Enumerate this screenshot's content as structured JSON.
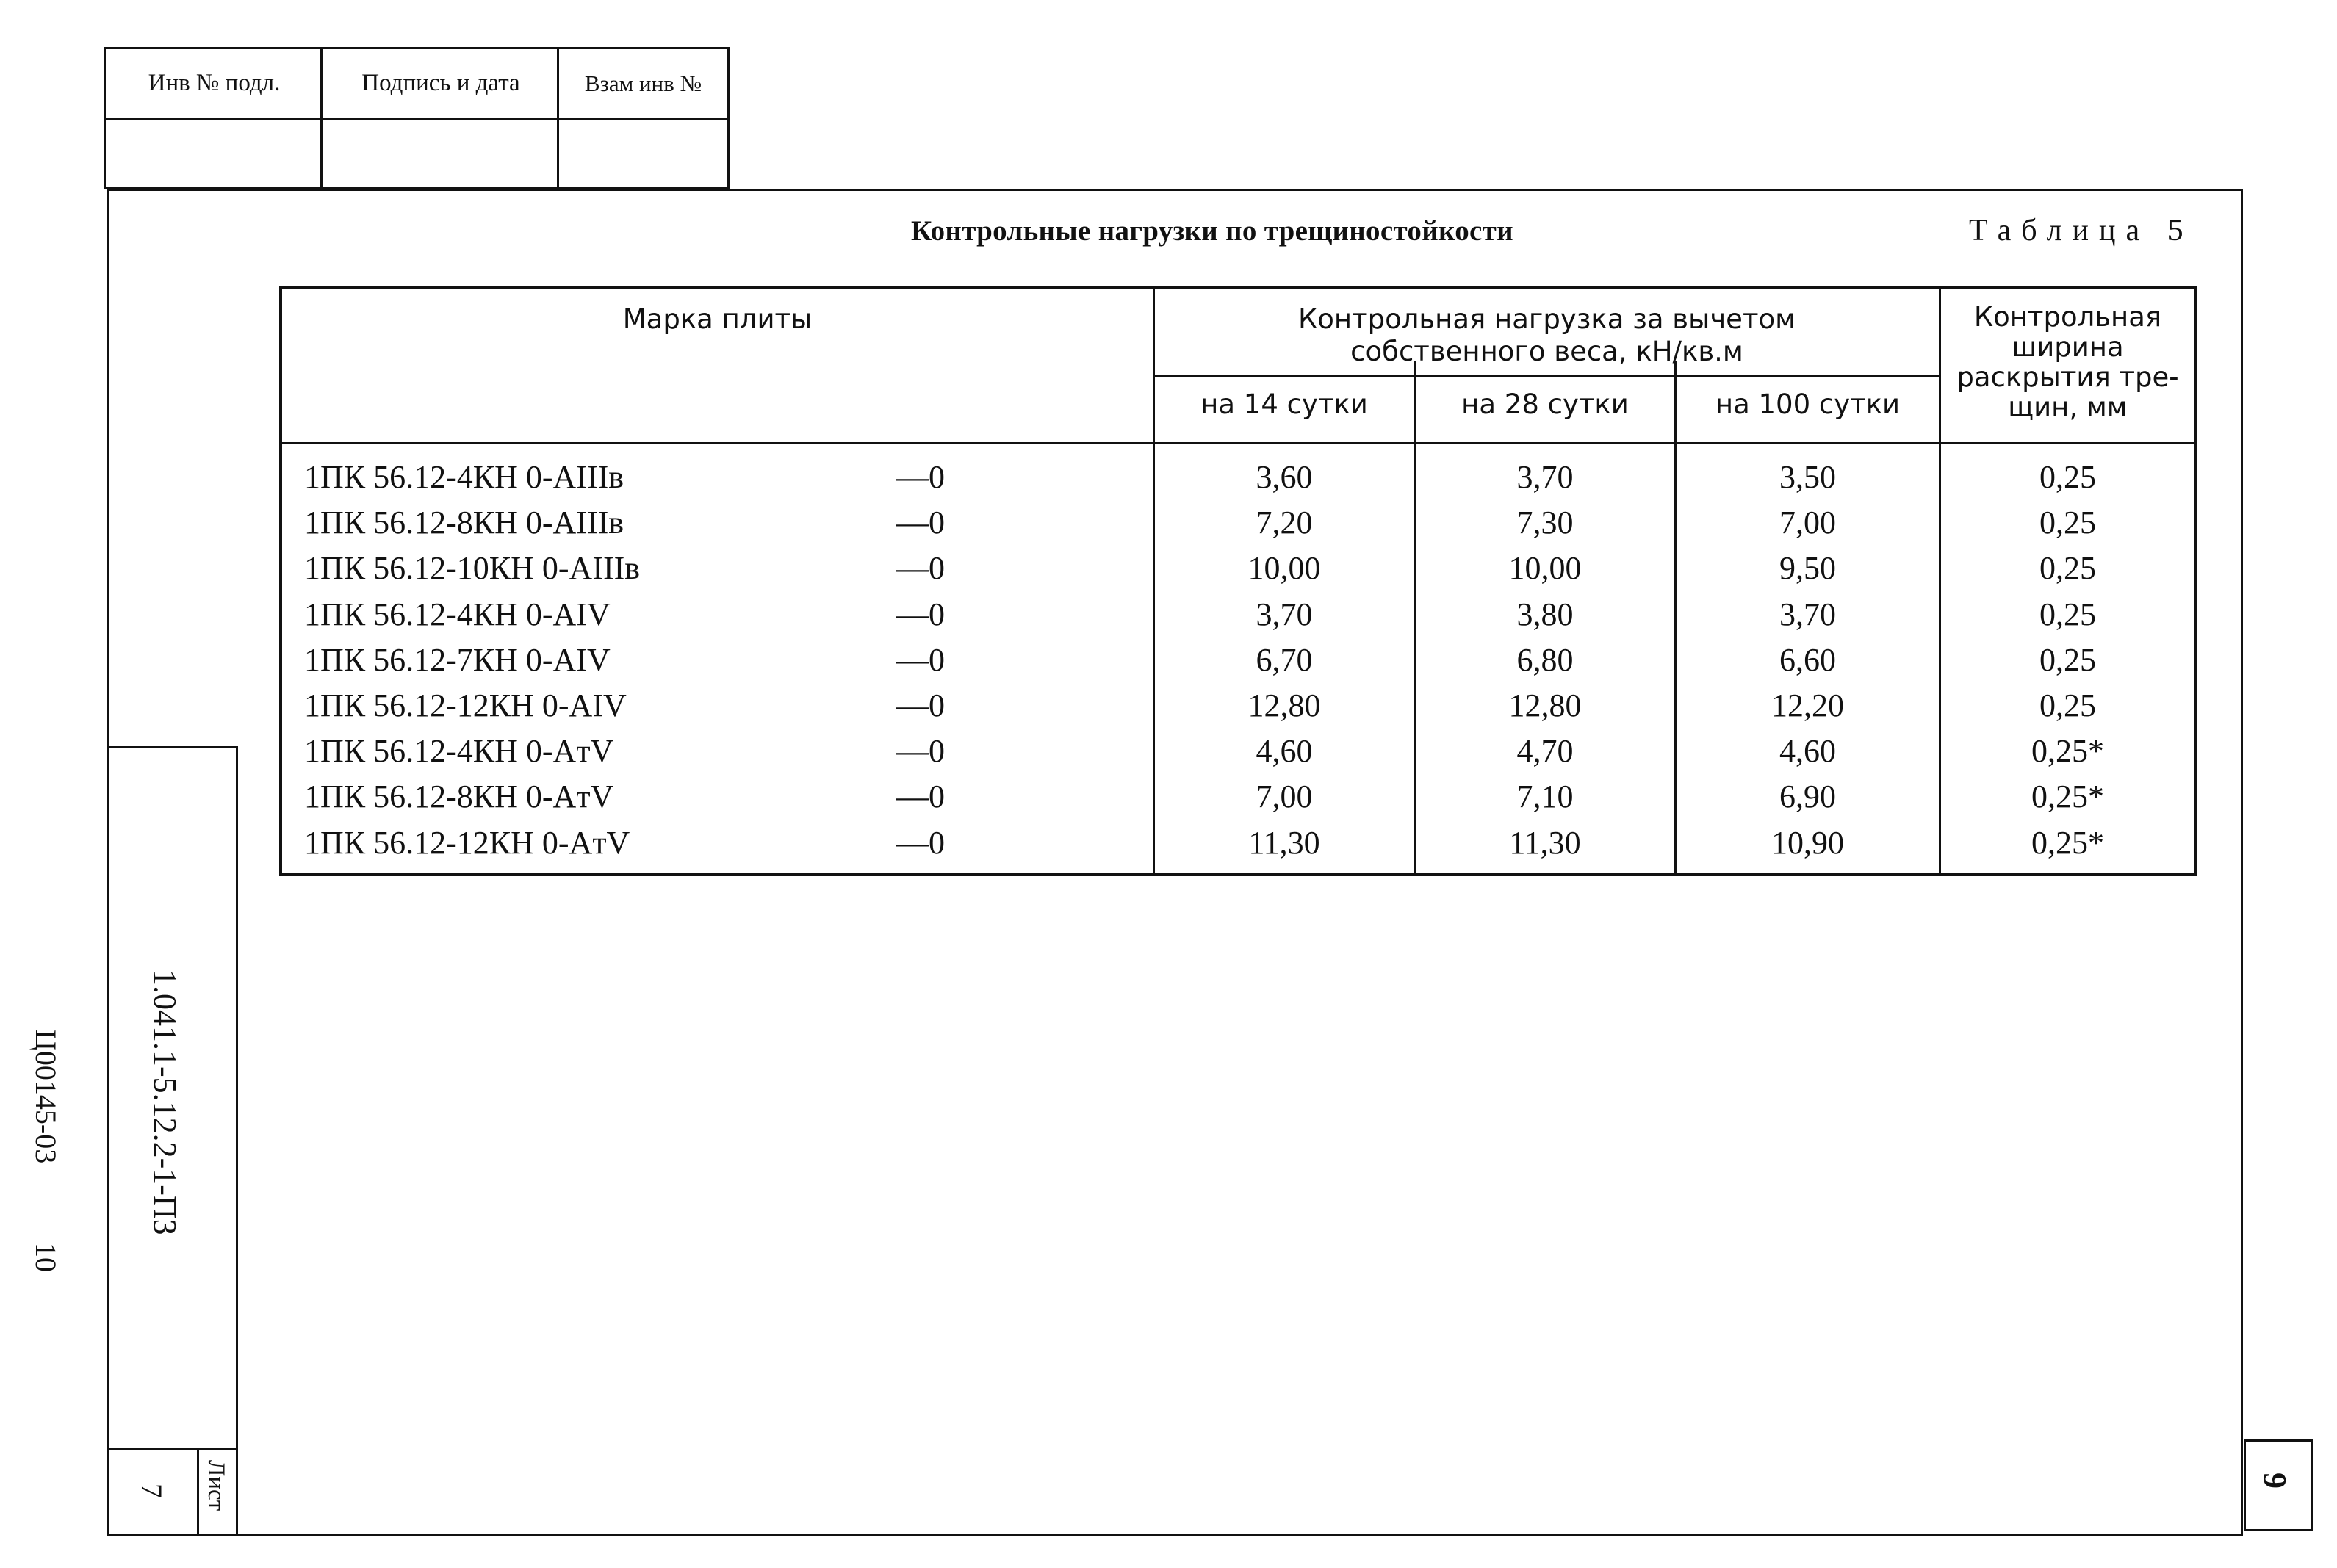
{
  "stamp": {
    "col1": "Инв № подл.",
    "col2": "Подпись и дата",
    "col3": "Взам инв №"
  },
  "title": "Контрольные нагрузки по трещиностойкости",
  "table_label": "Таблица 5",
  "table": {
    "header": {
      "mark": "Марка плиты",
      "load_group_line1": "Контрольная нагрузка за вычетом",
      "load_group_line2": "собственного веса, кН/кв.м",
      "days14": "на 14 сутки",
      "days28": "на 28 сутки",
      "days100": "на 100 сутки",
      "width_line1": "Контрольная",
      "width_line2": "ширина",
      "width_line3": "раскрытия тре-",
      "width_line4": "щин, мм"
    },
    "rows": [
      {
        "mark": "1ПК 56.12-4КН 0-AIIIв",
        "suffix": "—0",
        "d14": "3,60",
        "d28": "3,70",
        "d100": "3,50",
        "width": "0,25"
      },
      {
        "mark": "1ПК 56.12-8КН 0-AIIIв",
        "suffix": "—0",
        "d14": "7,20",
        "d28": "7,30",
        "d100": "7,00",
        "width": "0,25"
      },
      {
        "mark": "1ПК 56.12-10КН 0-AIIIв",
        "suffix": "—0",
        "d14": "10,00",
        "d28": "10,00",
        "d100": "9,50",
        "width": "0,25"
      },
      {
        "mark": "1ПК 56.12-4КН 0-AIV",
        "suffix": "—0",
        "d14": "3,70",
        "d28": "3,80",
        "d100": "3,70",
        "width": "0,25"
      },
      {
        "mark": "1ПК 56.12-7КН 0-AIV",
        "suffix": "—0",
        "d14": "6,70",
        "d28": "6,80",
        "d100": "6,60",
        "width": "0,25"
      },
      {
        "mark": "1ПК 56.12-12КН 0-AIV",
        "suffix": "—0",
        "d14": "12,80",
        "d28": "12,80",
        "d100": "12,20",
        "width": "0,25"
      },
      {
        "mark": "1ПК 56.12-4КН 0-AтV",
        "suffix": "—0",
        "d14": "4,60",
        "d28": "4,70",
        "d100": "4,60",
        "width": "0,25*"
      },
      {
        "mark": "1ПК 56.12-8КН 0-AтV",
        "suffix": "—0",
        "d14": "7,00",
        "d28": "7,10",
        "d100": "6,90",
        "width": "0,25*"
      },
      {
        "mark": "1ПК 56.12-12КН 0-AтV",
        "suffix": "—0",
        "d14": "11,30",
        "d28": "11,30",
        "d100": "10,90",
        "width": "0,25*"
      }
    ]
  },
  "side": {
    "doc_code": "1.041.1-5.12.2-1-ПЗ",
    "archive_code": "Ц00145-03",
    "archive_num": "10",
    "sheet_label": "Лист",
    "sheet_number": "7"
  },
  "page_number": "9"
}
